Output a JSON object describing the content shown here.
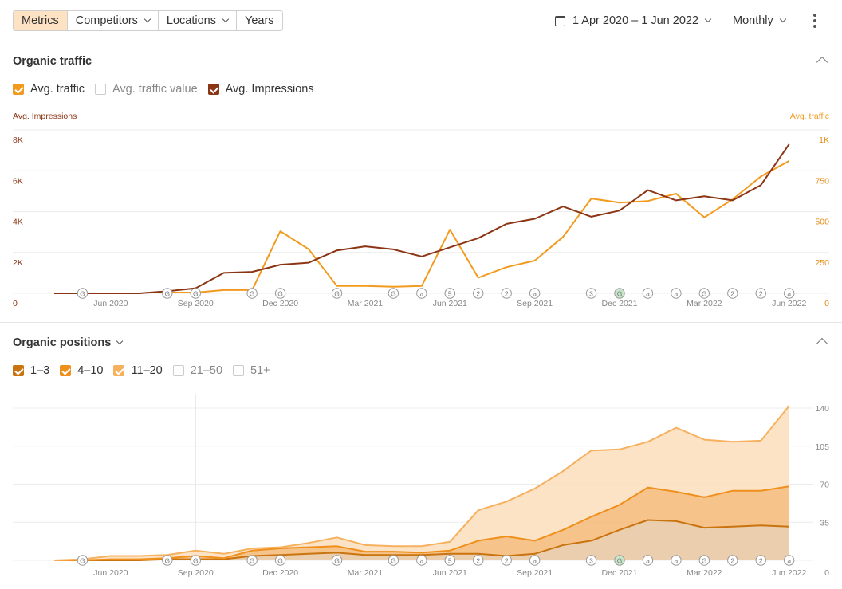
{
  "toolbar": {
    "tabs": [
      {
        "label": "Metrics",
        "active": true,
        "dropdown": false
      },
      {
        "label": "Competitors",
        "active": false,
        "dropdown": true
      },
      {
        "label": "Locations",
        "active": false,
        "dropdown": true
      },
      {
        "label": "Years",
        "active": false,
        "dropdown": false
      }
    ],
    "date_range": "1 Apr 2020 – 1 Jun 2022",
    "interval": "Monthly",
    "calendar_icon": "calendar-icon",
    "more_icon": "kebab-menu-icon"
  },
  "organic_traffic": {
    "title": "Organic traffic",
    "legend": [
      {
        "label": "Avg. traffic",
        "checked": true,
        "color": "#f29a1e"
      },
      {
        "label": "Avg. traffic value",
        "checked": false,
        "color": "#cccccc"
      },
      {
        "label": "Avg. Impressions",
        "checked": true,
        "color": "#8c3514"
      }
    ]
  },
  "organic_positions": {
    "title": "Organic positions",
    "legend": [
      {
        "label": "1–3",
        "checked": true,
        "color": "#c9740f"
      },
      {
        "label": "4–10",
        "checked": true,
        "color": "#ef8f1c"
      },
      {
        "label": "11–20",
        "checked": true,
        "color": "#f6b15e"
      },
      {
        "label": "21–50",
        "checked": false,
        "color": "#cccccc"
      },
      {
        "label": "51+",
        "checked": false,
        "color": "#cccccc"
      }
    ]
  },
  "chart_data": [
    {
      "type": "line",
      "title": "Organic traffic",
      "months": [
        "Apr 2020",
        "May 2020",
        "Jun 2020",
        "Jul 2020",
        "Aug 2020",
        "Sep 2020",
        "Oct 2020",
        "Nov 2020",
        "Dec 2020",
        "Jan 2021",
        "Feb 2021",
        "Mar 2021",
        "Apr 2021",
        "May 2021",
        "Jun 2021",
        "Jul 2021",
        "Aug 2021",
        "Sep 2021",
        "Oct 2021",
        "Nov 2021",
        "Dec 2021",
        "Jan 2022",
        "Feb 2022",
        "Mar 2022",
        "Apr 2022",
        "May 2022",
        "Jun 2022"
      ],
      "x_tick_labels": [
        "Jun 2020",
        "Sep 2020",
        "Dec 2020",
        "Mar 2021",
        "Jun 2021",
        "Sep 2021",
        "Dec 2021",
        "Mar 2022",
        "Jun 2022"
      ],
      "x_tick_months": [
        "Jun 2020",
        "Sep 2020",
        "Dec 2020",
        "Mar 2021",
        "Jun 2021",
        "Sep 2021",
        "Dec 2021",
        "Mar 2022",
        "Jun 2022"
      ],
      "y_left": {
        "label": "Avg. Impressions",
        "ticks": [
          0,
          2000,
          4000,
          6000,
          8000
        ],
        "tick_labels": [
          "0",
          "2K",
          "4K",
          "6K",
          "8K"
        ],
        "range": [
          0,
          8000
        ]
      },
      "y_right": {
        "label": "Avg. traffic",
        "ticks": [
          0,
          250,
          500,
          750,
          1000
        ],
        "tick_labels": [
          "0",
          "250",
          "500",
          "750",
          "1K"
        ],
        "range": [
          0,
          1000
        ]
      },
      "grid": true,
      "series": [
        {
          "name": "Avg. traffic",
          "axis": "right",
          "color": "#f29a1e",
          "values": [
            null,
            null,
            null,
            null,
            5,
            5,
            20,
            20,
            380,
            270,
            45,
            45,
            40,
            45,
            390,
            95,
            160,
            200,
            345,
            580,
            555,
            565,
            610,
            465,
            575,
            715,
            810
          ]
        },
        {
          "name": "Avg. Impressions",
          "axis": "left",
          "color": "#8c3514",
          "values": [
            0,
            0,
            0,
            0,
            100,
            250,
            1000,
            1050,
            1400,
            1500,
            2100,
            2300,
            2150,
            1800,
            2250,
            2700,
            3400,
            3650,
            4250,
            3750,
            4050,
            5050,
            4550,
            4750,
            4550,
            5300,
            7300
          ]
        }
      ],
      "annotation_markers": [
        "G",
        "G",
        "G",
        "G",
        "G",
        "G",
        "G",
        "G",
        "a",
        "5",
        "2",
        "2",
        "a",
        "3",
        "G",
        "a",
        "a",
        "G",
        "2",
        "2",
        "a"
      ],
      "marker_months": [
        "May 2020",
        "Aug 2020",
        "Sep 2020",
        "Nov 2020",
        "Dec 2020",
        "Feb 2021",
        "Apr 2021",
        "Jun 2021",
        "May 2021",
        "Jun 2021",
        "Jul 2021",
        "Aug 2021",
        "Sep 2021",
        "Nov 2021",
        "Dec 2021",
        "Jan 2022",
        "Feb 2022",
        "Mar 2022",
        "Apr 2022",
        "May 2022",
        "Jun 2022"
      ]
    },
    {
      "type": "area",
      "title": "Organic positions",
      "stacked": true,
      "months": [
        "Apr 2020",
        "May 2020",
        "Jun 2020",
        "Jul 2020",
        "Aug 2020",
        "Sep 2020",
        "Oct 2020",
        "Nov 2020",
        "Dec 2020",
        "Jan 2021",
        "Feb 2021",
        "Mar 2021",
        "Apr 2021",
        "May 2021",
        "Jun 2021",
        "Jul 2021",
        "Aug 2021",
        "Sep 2021",
        "Oct 2021",
        "Nov 2021",
        "Dec 2021",
        "Jan 2022",
        "Feb 2022",
        "Mar 2022",
        "Apr 2022",
        "May 2022",
        "Jun 2022"
      ],
      "x_tick_labels": [
        "Jun 2020",
        "Sep 2020",
        "Dec 2020",
        "Mar 2021",
        "Jun 2021",
        "Sep 2021",
        "Dec 2021",
        "Mar 2022",
        "Jun 2022"
      ],
      "y_right": {
        "ticks": [
          0,
          35,
          70,
          105,
          140
        ],
        "tick_labels": [
          "0",
          "35",
          "70",
          "105",
          "140"
        ],
        "range": [
          0,
          140
        ]
      },
      "grid": true,
      "series": [
        {
          "name": "1–3",
          "color": "#c9740f",
          "fill": "#e8c9a5",
          "values": [
            0,
            0,
            0,
            0,
            1,
            1,
            1,
            4,
            5,
            6,
            7,
            5,
            5,
            5,
            6,
            6,
            4,
            6,
            14,
            18,
            28,
            37,
            36,
            30,
            31,
            32,
            31
          ]
        },
        {
          "name": "4–10",
          "color": "#ef8f1c",
          "fill": "#f5bd7d",
          "values": [
            0,
            0,
            1,
            1,
            1,
            3,
            1,
            5,
            6,
            6,
            6,
            3,
            3,
            2,
            3,
            12,
            18,
            12,
            14,
            22,
            23,
            30,
            27,
            28,
            33,
            32,
            37
          ]
        },
        {
          "name": "11–20",
          "color": "#f6b15e",
          "fill": "#fce0c0",
          "values": [
            0,
            1,
            3,
            3,
            3,
            5,
            4,
            2,
            1,
            4,
            8,
            6,
            5,
            6,
            8,
            28,
            32,
            48,
            54,
            61,
            51,
            42,
            59,
            53,
            45,
            46,
            74
          ]
        }
      ],
      "annotation_markers": [
        "G",
        "G",
        "G",
        "G",
        "G",
        "G",
        "G",
        "G",
        "a",
        "5",
        "2",
        "2",
        "a",
        "3",
        "G",
        "a",
        "a",
        "G",
        "2",
        "2",
        "a"
      ]
    }
  ]
}
